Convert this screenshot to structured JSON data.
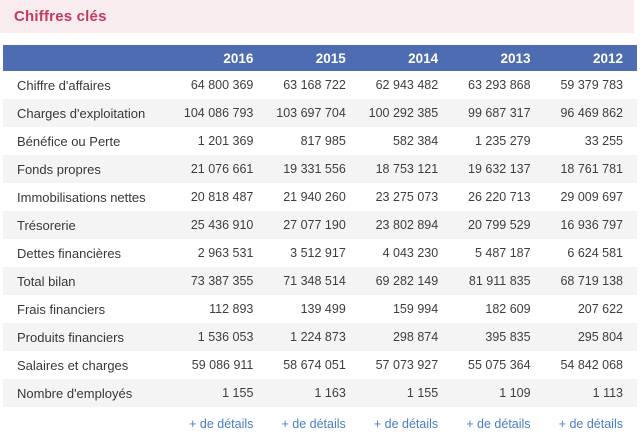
{
  "header": {
    "title": "Chiffres clés"
  },
  "colors": {
    "title_text": "#c23a5d",
    "title_bar_bg": "#f9ecee",
    "table_header_bg": "#4d6cb2",
    "alt_row_bg": "#f4f4f4",
    "link_blue": "#4a7dc9"
  },
  "table": {
    "columns": [
      "2016",
      "2015",
      "2014",
      "2013",
      "2012"
    ],
    "rows": [
      {
        "label": "Chiffre d'affaires",
        "values": [
          "64 800 369",
          "63 168 722",
          "62 943 482",
          "63 293 868",
          "59 379 783"
        ]
      },
      {
        "label": "Charges d'exploitation",
        "values": [
          "104 086 793",
          "103 697 704",
          "100 292 385",
          "99 687 317",
          "96 469 862"
        ]
      },
      {
        "label": "Bénéfice ou Perte",
        "values": [
          "1 201 369",
          "817 985",
          "582 384",
          "1 235 279",
          "33 255"
        ]
      },
      {
        "label": "Fonds propres",
        "values": [
          "21 076 661",
          "19 331 556",
          "18 753 121",
          "19 632 137",
          "18 761 781"
        ]
      },
      {
        "label": "Immobilisations nettes",
        "values": [
          "20 818 487",
          "21 940 260",
          "23 275 073",
          "26 220 713",
          "29 009 697"
        ]
      },
      {
        "label": "Trésorerie",
        "values": [
          "25 436 910",
          "27 077 190",
          "23 802 894",
          "20 799 529",
          "16 936 797"
        ]
      },
      {
        "label": "Dettes financières",
        "values": [
          "2 963 531",
          "3 512 917",
          "4 043 230",
          "5 487 187",
          "6 624 581"
        ]
      },
      {
        "label": "Total bilan",
        "values": [
          "73 387 355",
          "71 348 514",
          "69 282 149",
          "81 911 835",
          "68 719 138"
        ]
      },
      {
        "label": "Frais financiers",
        "values": [
          "112 893",
          "139 499",
          "159 994",
          "182 609",
          "207 622"
        ]
      },
      {
        "label": "Produits financiers",
        "values": [
          "1 536 053",
          "1 224 873",
          "298 874",
          "395 835",
          "295 804"
        ]
      },
      {
        "label": "Salaires et charges",
        "values": [
          "59 086 911",
          "58 674 051",
          "57 073 927",
          "55 075 364",
          "54 842 068"
        ]
      },
      {
        "label": "Nombre d'employés",
        "values": [
          "1 155",
          "1 163",
          "1 155",
          "1 109",
          "1 113"
        ]
      }
    ],
    "details_label": "+ de détails"
  }
}
